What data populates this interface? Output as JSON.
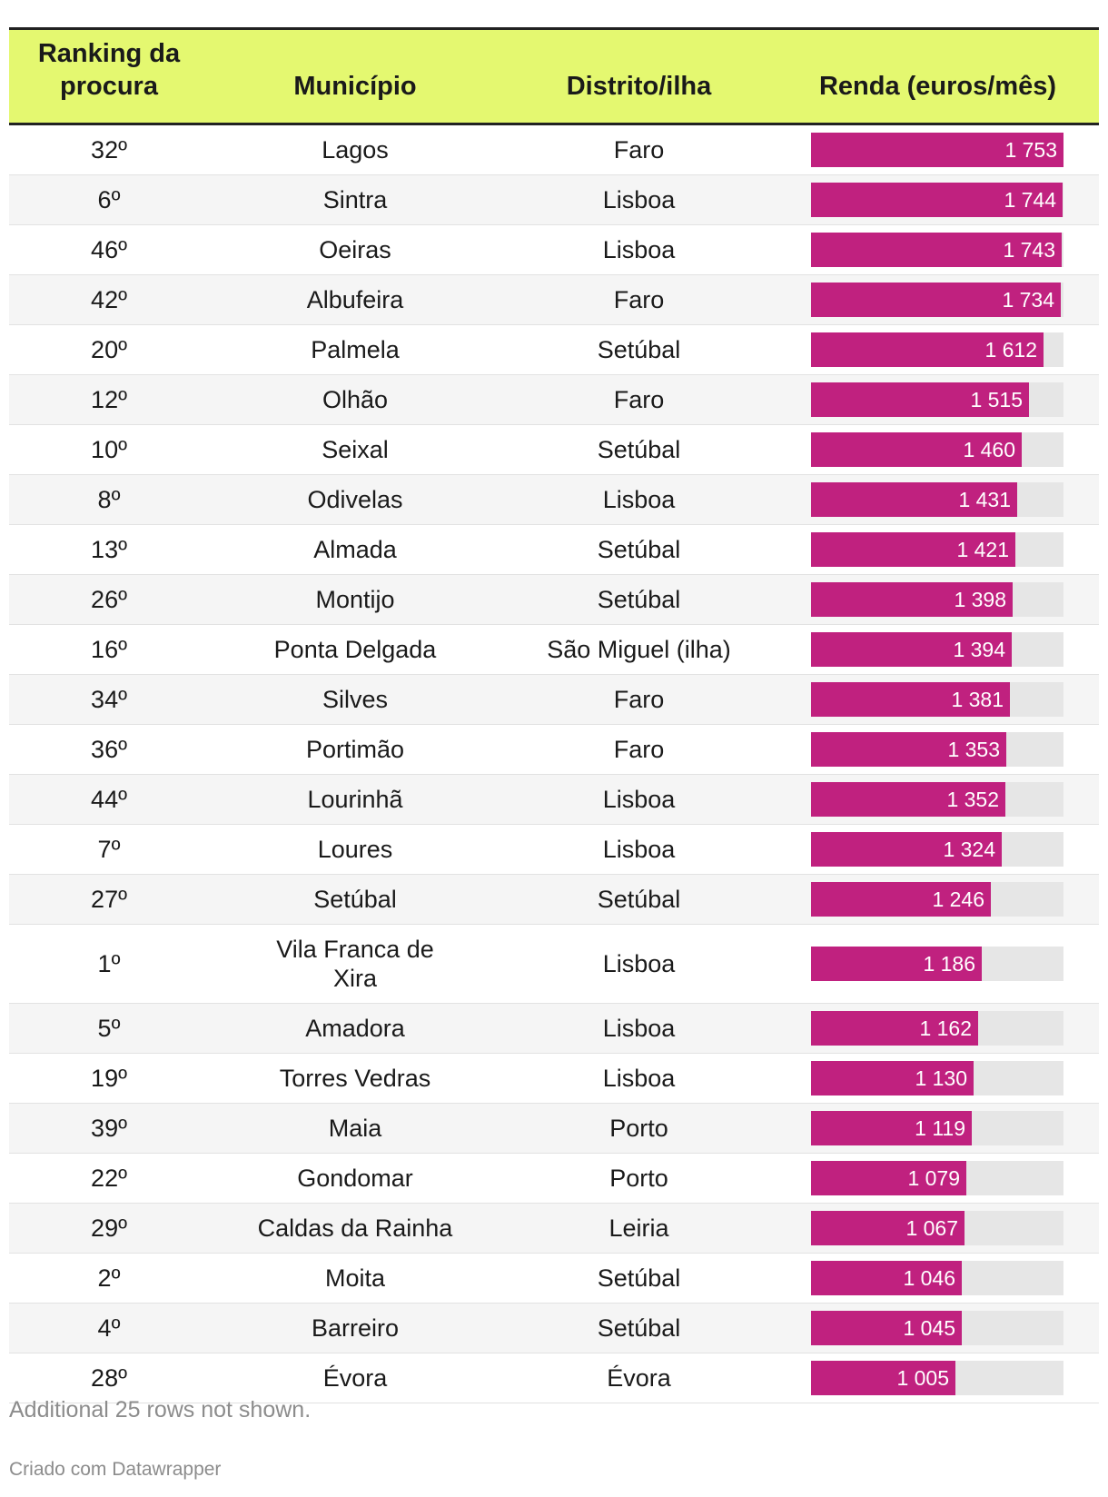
{
  "chart_data": {
    "type": "table",
    "columns": [
      "Ranking da procura",
      "Município",
      "Distrito/ilha",
      "Renda (euros/mês)"
    ],
    "bar_max": 1753,
    "rows": [
      {
        "rank": "32º",
        "municipio": "Lagos",
        "distrito": "Faro",
        "renda": 1753,
        "renda_label": "1 753"
      },
      {
        "rank": "6º",
        "municipio": "Sintra",
        "distrito": "Lisboa",
        "renda": 1744,
        "renda_label": "1 744"
      },
      {
        "rank": "46º",
        "municipio": "Oeiras",
        "distrito": "Lisboa",
        "renda": 1743,
        "renda_label": "1 743"
      },
      {
        "rank": "42º",
        "municipio": "Albufeira",
        "distrito": "Faro",
        "renda": 1734,
        "renda_label": "1 734"
      },
      {
        "rank": "20º",
        "municipio": "Palmela",
        "distrito": "Setúbal",
        "renda": 1612,
        "renda_label": "1 612"
      },
      {
        "rank": "12º",
        "municipio": "Olhão",
        "distrito": "Faro",
        "renda": 1515,
        "renda_label": "1 515"
      },
      {
        "rank": "10º",
        "municipio": "Seixal",
        "distrito": "Setúbal",
        "renda": 1460,
        "renda_label": "1 460"
      },
      {
        "rank": "8º",
        "municipio": "Odivelas",
        "distrito": "Lisboa",
        "renda": 1431,
        "renda_label": "1 431"
      },
      {
        "rank": "13º",
        "municipio": "Almada",
        "distrito": "Setúbal",
        "renda": 1421,
        "renda_label": "1 421"
      },
      {
        "rank": "26º",
        "municipio": "Montijo",
        "distrito": "Setúbal",
        "renda": 1398,
        "renda_label": "1 398"
      },
      {
        "rank": "16º",
        "municipio": "Ponta Delgada",
        "distrito": "São Miguel (ilha)",
        "renda": 1394,
        "renda_label": "1 394"
      },
      {
        "rank": "34º",
        "municipio": "Silves",
        "distrito": "Faro",
        "renda": 1381,
        "renda_label": "1 381"
      },
      {
        "rank": "36º",
        "municipio": "Portimão",
        "distrito": "Faro",
        "renda": 1353,
        "renda_label": "1 353"
      },
      {
        "rank": "44º",
        "municipio": "Lourinhã",
        "distrito": "Lisboa",
        "renda": 1352,
        "renda_label": "1 352"
      },
      {
        "rank": "7º",
        "municipio": "Loures",
        "distrito": "Lisboa",
        "renda": 1324,
        "renda_label": "1 324"
      },
      {
        "rank": "27º",
        "municipio": "Setúbal",
        "distrito": "Setúbal",
        "renda": 1246,
        "renda_label": "1 246"
      },
      {
        "rank": "1º",
        "municipio": "Vila Franca de Xira",
        "distrito": "Lisboa",
        "renda": 1186,
        "renda_label": "1 186"
      },
      {
        "rank": "5º",
        "municipio": "Amadora",
        "distrito": "Lisboa",
        "renda": 1162,
        "renda_label": "1 162"
      },
      {
        "rank": "19º",
        "municipio": "Torres Vedras",
        "distrito": "Lisboa",
        "renda": 1130,
        "renda_label": "1 130"
      },
      {
        "rank": "39º",
        "municipio": "Maia",
        "distrito": "Porto",
        "renda": 1119,
        "renda_label": "1 119"
      },
      {
        "rank": "22º",
        "municipio": "Gondomar",
        "distrito": "Porto",
        "renda": 1079,
        "renda_label": "1 079"
      },
      {
        "rank": "29º",
        "municipio": "Caldas da Rainha",
        "distrito": "Leiria",
        "renda": 1067,
        "renda_label": "1 067"
      },
      {
        "rank": "2º",
        "municipio": "Moita",
        "distrito": "Setúbal",
        "renda": 1046,
        "renda_label": "1 046"
      },
      {
        "rank": "4º",
        "municipio": "Barreiro",
        "distrito": "Setúbal",
        "renda": 1045,
        "renda_label": "1 045"
      },
      {
        "rank": "28º",
        "municipio": "Évora",
        "distrito": "Évora",
        "renda": 1005,
        "renda_label": "1 005"
      }
    ]
  },
  "table": {
    "header": {
      "rank_line1": "Ranking da",
      "rank_line2": "procura",
      "municipio": "Município",
      "distrito": "Distrito/ilha",
      "renda": "Renda (euros/mês)"
    }
  },
  "footer": {
    "note": "Additional 25 rows not shown.",
    "credit": "Criado com Datawrapper"
  },
  "colors": {
    "header_bg": "#e4f870",
    "bar_fill": "#c0217f",
    "bar_track": "#e6e6e6"
  }
}
